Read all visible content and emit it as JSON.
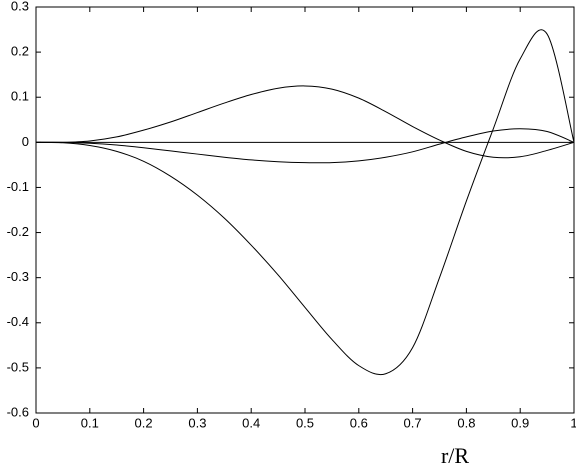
{
  "chart_data": {
    "type": "line",
    "xlabel": "r/R",
    "x": [
      0,
      0.05,
      0.1,
      0.15,
      0.2,
      0.25,
      0.3,
      0.35,
      0.4,
      0.45,
      0.5,
      0.55,
      0.6,
      0.65,
      0.7,
      0.75,
      0.8,
      0.85,
      0.9,
      0.95,
      1
    ],
    "series": [
      {
        "color": "#000000",
        "values": [
          0,
          0,
          0.003,
          0.012,
          0.027,
          0.045,
          0.066,
          0.087,
          0.106,
          0.12,
          0.125,
          0.118,
          0.098,
          0.068,
          0.035,
          0.005,
          -0.02,
          -0.033,
          -0.032,
          -0.018,
          0
        ]
      },
      {
        "color": "#000000",
        "values": [
          0,
          0,
          -0.002,
          -0.006,
          -0.012,
          -0.019,
          -0.026,
          -0.033,
          -0.039,
          -0.043,
          -0.045,
          -0.045,
          -0.041,
          -0.033,
          -0.021,
          -0.004,
          0.012,
          0.025,
          0.03,
          0.024,
          0
        ]
      },
      {
        "color": "#000000",
        "values": [
          0,
          -0.001,
          -0.007,
          -0.02,
          -0.042,
          -0.075,
          -0.117,
          -0.168,
          -0.228,
          -0.294,
          -0.366,
          -0.437,
          -0.495,
          -0.513,
          -0.455,
          -0.3,
          -0.13,
          0.03,
          0.185,
          0.24,
          0
        ]
      }
    ],
    "hlines": [
      0
    ],
    "xlim": [
      0,
      1
    ],
    "xticks": [
      0,
      0.1,
      0.2,
      0.3,
      0.4,
      0.5,
      0.6,
      0.7,
      0.8,
      0.9,
      1
    ],
    "ylim": [
      -0.6,
      0.3
    ],
    "yticks": [
      0.3,
      0.2,
      0.1,
      0,
      -0.1,
      -0.2,
      -0.3,
      -0.4,
      -0.5,
      -0.6
    ]
  }
}
